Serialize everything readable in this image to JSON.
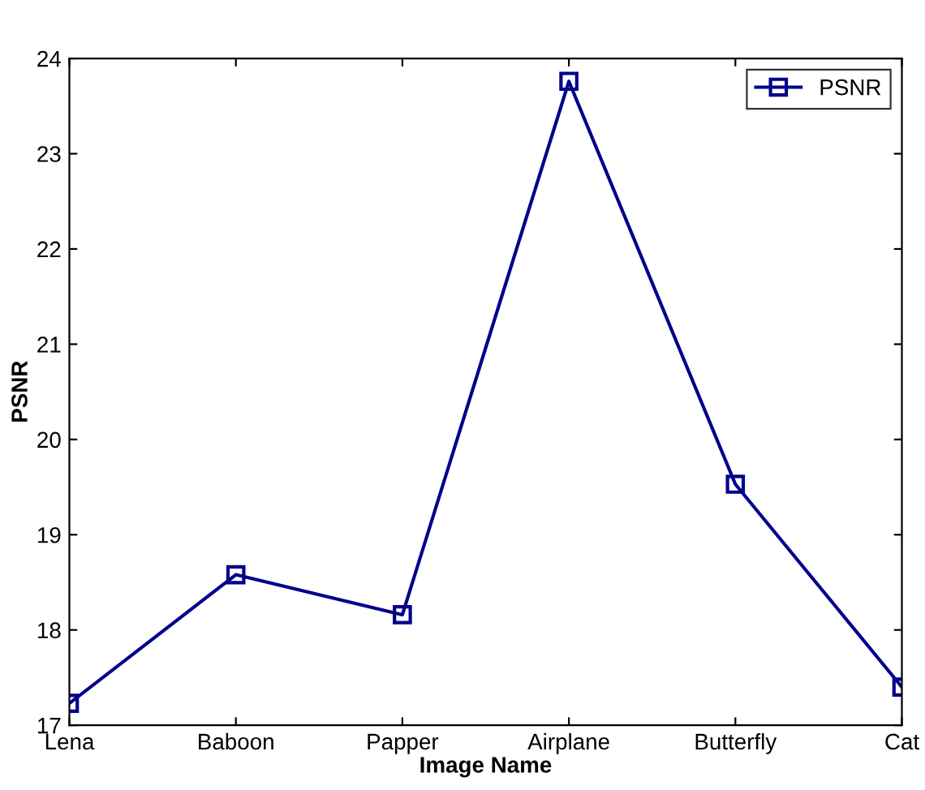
{
  "chart_data": {
    "type": "line",
    "xlabel": "Image Name",
    "ylabel": "PSNR",
    "categories": [
      "Lena",
      "Baboon",
      "Papper",
      "Airplane",
      "Butterfly",
      "Cat"
    ],
    "series": [
      {
        "name": "PSNR",
        "color": "#00008b",
        "values": [
          17.23,
          18.58,
          18.16,
          23.76,
          19.53,
          17.4
        ]
      }
    ],
    "ylim": [
      17,
      24
    ],
    "yticks": [
      17,
      18,
      19,
      20,
      21,
      22,
      23,
      24
    ],
    "marker": "square",
    "line_style": "solid",
    "legend": "top right",
    "grid": false
  }
}
